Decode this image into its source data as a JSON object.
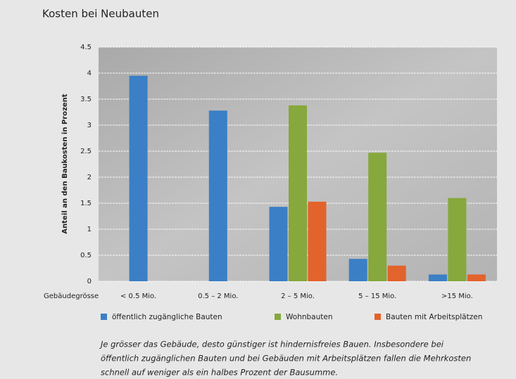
{
  "chart_data": {
    "type": "bar",
    "title": "Kosten bei Neubauten",
    "y_label": "Anteil an den Baukosten in Prozent",
    "x_label": "Gebäudegrösse",
    "categories": [
      "< 0.5 Mio.",
      "0.5 – 2 Mio.",
      "2 – 5 Mio.",
      "5 – 15 Mio.",
      ">15 Mio."
    ],
    "series": [
      {
        "name": "öffentlich zugängliche Bauten",
        "color": "#3b7fc6",
        "values": [
          3.95,
          3.28,
          1.43,
          0.43,
          0.13
        ]
      },
      {
        "name": "Wohnbauten",
        "color": "#86a83c",
        "values": [
          null,
          null,
          3.38,
          2.47,
          1.6
        ]
      },
      {
        "name": "Bauten mit Arbeitsplätzen",
        "color": "#e2632b",
        "values": [
          null,
          null,
          1.53,
          0.3,
          0.13
        ]
      }
    ],
    "ylim": [
      0,
      4.5
    ],
    "yticks": [
      0,
      0.5,
      1,
      1.5,
      2,
      2.5,
      3,
      3.5,
      4,
      4.5
    ],
    "grid": true,
    "caption": [
      "Je grösser das Gebäude, desto günstiger ist hindernisfreies Bauen. Insbesondere bei",
      "öffentlich zugänglichen Bauten und bei Gebäuden mit Arbeitsplätzen fallen die Mehrkosten",
      "schnell auf weniger als ein halbes Prozent der Bausumme."
    ]
  }
}
